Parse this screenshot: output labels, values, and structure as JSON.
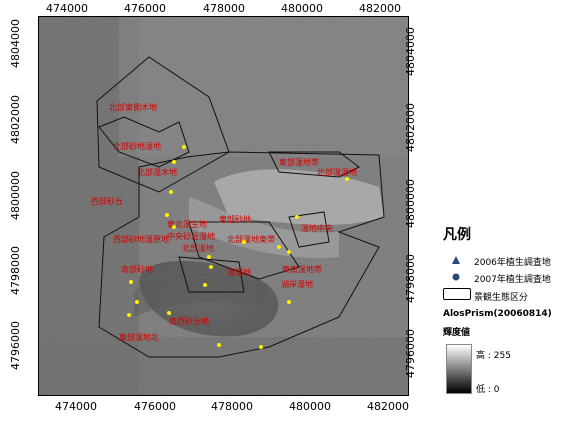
{
  "map": {
    "x_ticks": [
      "474000",
      "476000",
      "478000",
      "480000",
      "482000"
    ],
    "y_ticks": [
      "4804000",
      "4802000",
      "4800000",
      "4798000",
      "4796000"
    ],
    "area_labels": [
      "北部東側木地",
      "北部砂地湿地",
      "北部湿木地",
      "西部砂丘",
      "東部砂地",
      "東部湿地帯",
      "北部湿湿地",
      "西部砂地湿原地",
      "東北湿生地",
      "中央砂丘湿地",
      "湿地中央",
      "北部湿地東帯",
      "北部湿地",
      "湿湿地",
      "東南湿地帯",
      "南部砂地",
      "湖岸湿地",
      "南西砂丘地",
      "東部湿地北"
    ]
  },
  "legend": {
    "title": "凡例",
    "items": [
      {
        "label": "2006年植生調査地",
        "symbol": "triangle",
        "color": "#2a4a7a"
      },
      {
        "label": "2007年植生調査地",
        "symbol": "circle",
        "color": "#2a4a7a"
      },
      {
        "label": "景観生態区分",
        "symbol": "box",
        "color": "#000000"
      }
    ],
    "raster_name": "AlosPrism(20060814)",
    "raster_field": "輝度値",
    "high_label": "高 : 255",
    "low_label": "低 : 0"
  },
  "colors": {
    "label_red": "#d00000",
    "point_yellow": "#ffee00"
  }
}
